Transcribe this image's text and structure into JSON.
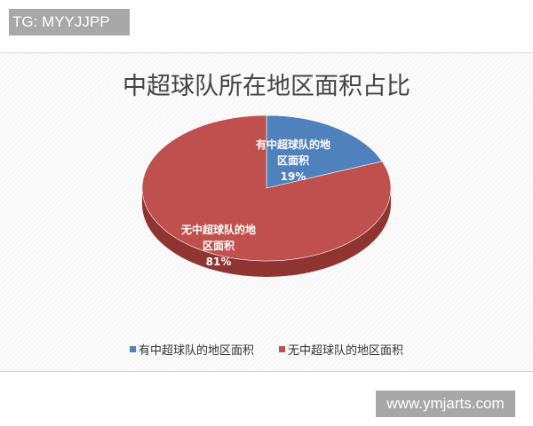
{
  "watermark_top": "TG: MYYJJPP",
  "watermark_bottom": "www.ymjarts.com",
  "chart_data": {
    "type": "pie",
    "title": "中超球队所在地区面积占比",
    "categories": [
      "有中超球队的地区面积",
      "无中超球队的地区面积"
    ],
    "values": [
      19,
      81
    ],
    "data_labels": [
      {
        "line1": "有中超球队的地",
        "line2": "区面积",
        "value": "19%"
      },
      {
        "line1": "无中超球队的地",
        "line2": "区面积",
        "value": "81%"
      }
    ],
    "colors": [
      "#4F81BD",
      "#C0504D"
    ],
    "style": "3d",
    "legend_position": "bottom"
  }
}
